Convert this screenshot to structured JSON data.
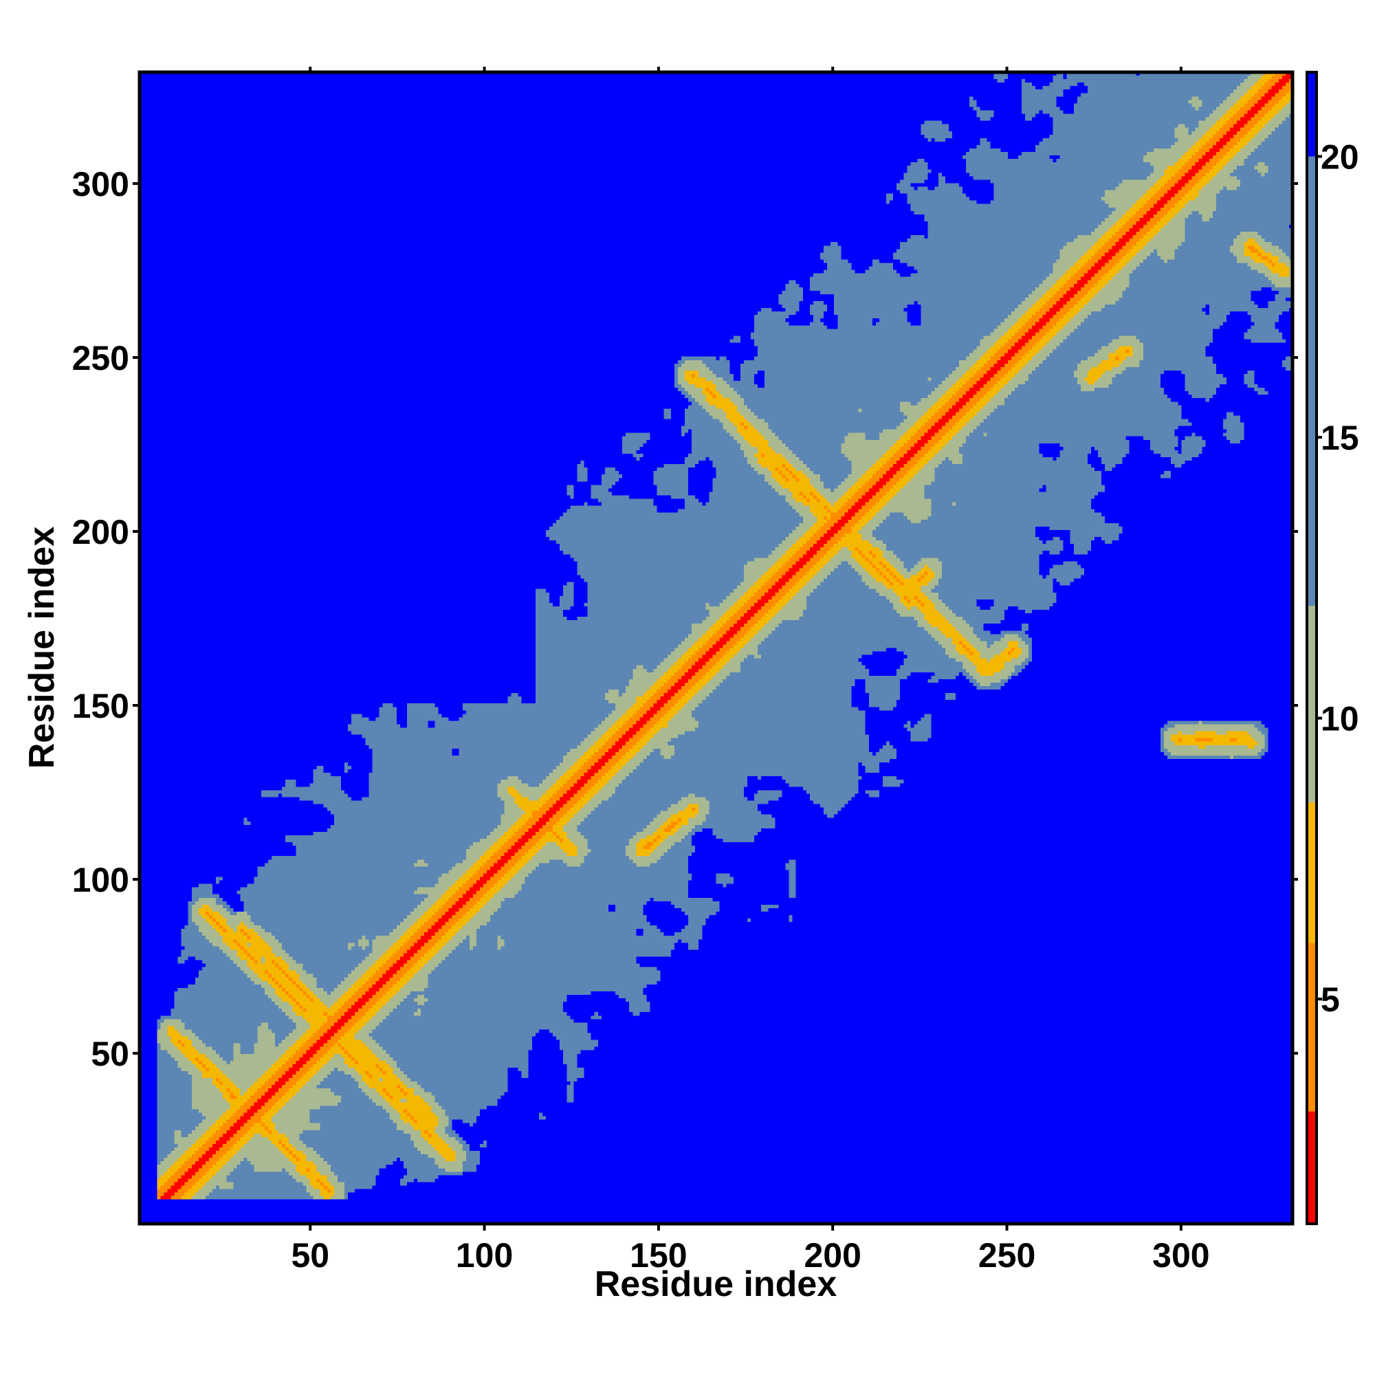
{
  "chart_data": {
    "type": "heatmap",
    "title": "",
    "xlabel": "Residue index",
    "ylabel": "Residue index",
    "xlim": [
      1,
      332
    ],
    "ylim": [
      1,
      332
    ],
    "x_ticks": [
      50,
      100,
      150,
      200,
      250,
      300
    ],
    "y_ticks": [
      50,
      100,
      150,
      200,
      250,
      300
    ],
    "colorbar": {
      "range": [
        1,
        21.5
      ],
      "ticks": [
        5,
        10,
        15,
        20
      ],
      "colors": {
        "near": "#ff0000",
        "mid_close": "#ff8c00",
        "contact_edge": "#f5b800",
        "medium": "#a9b992",
        "far": "#5c86b4",
        "very_far": "#0000ff"
      },
      "thresholds": [
        3,
        6,
        8.5,
        12,
        20
      ]
    },
    "structure": {
      "diagonal": "red band along i = j",
      "secondary_contacts": [
        {
          "from": [
            108,
            125
          ],
          "to": [
            125,
            108
          ]
        },
        {
          "from": [
            10,
            55
          ],
          "to": [
            55,
            10
          ]
        },
        {
          "from": [
            20,
            90
          ],
          "to": [
            90,
            20
          ]
        },
        {
          "from": [
            30,
            85
          ],
          "to": [
            85,
            30
          ]
        },
        {
          "from": [
            160,
            245
          ],
          "to": [
            245,
            160
          ]
        },
        {
          "from": [
            180,
            222
          ],
          "to": [
            222,
            180
          ]
        },
        {
          "from": [
            221,
            183
          ],
          "to": [
            227,
            188
          ]
        },
        {
          "from": [
            245,
            160
          ],
          "to": [
            252,
            166
          ]
        },
        {
          "from": [
            275,
            245
          ],
          "to": [
            285,
            252
          ]
        },
        {
          "from": [
            320,
            282
          ],
          "to": [
            330,
            275
          ]
        },
        {
          "from": [
            145,
            108
          ],
          "to": [
            160,
            120
          ]
        },
        {
          "from": [
            300,
            140
          ],
          "to": [
            320,
            140
          ]
        }
      ],
      "far_regions": [
        "upper-left block (x < 110, y > 150)",
        "lower-right block (x > 200, y < 110)"
      ]
    }
  }
}
